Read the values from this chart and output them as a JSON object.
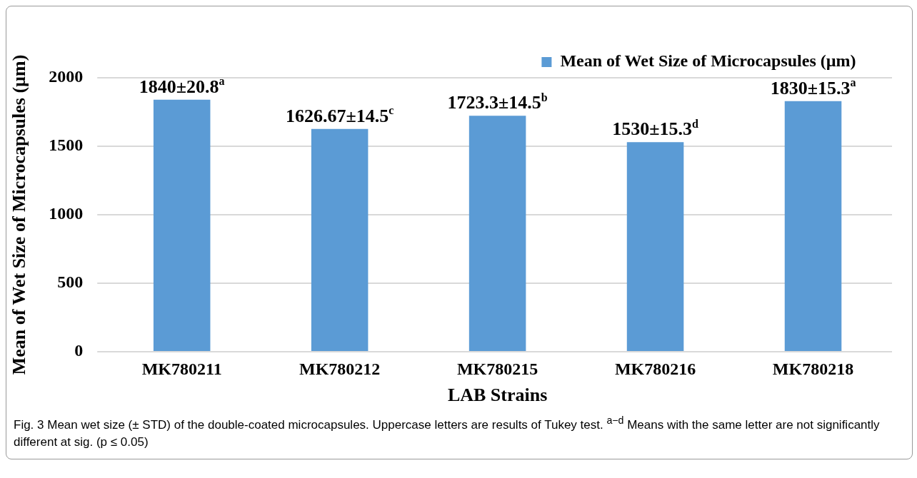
{
  "chart_data": {
    "type": "bar",
    "categories": [
      "MK780211",
      "MK780212",
      "MK780215",
      "MK780216",
      "MK780218"
    ],
    "series": [
      {
        "name": "Mean of Wet Size of Microcapsules (µm)",
        "color": "#5b9bd5",
        "values": [
          1840,
          1626.67,
          1723.3,
          1530,
          1830
        ],
        "value_labels": [
          "1840±20.8$^{a}$",
          "1626.67±14.5$^{c}$",
          "1723.3±14.5$^{b}$",
          "1530±15.3$^{d}$",
          "1830±15.3$^{a}$"
        ]
      }
    ],
    "xlabel": "LAB Strains",
    "ylabel": "Mean of Wet Size of Microcapsules (µm)",
    "ylim": [
      0,
      2000
    ],
    "yticks": [
      0,
      500,
      1000,
      1500,
      2000
    ],
    "grid": "y",
    "legend": "top right",
    "annotations": [
      "Fig. 3 Mean wet size (± STD) of the double-coated microcapsules. Uppercase letters are results of Tukey test. $^{a−d}$ Means with the same letter are not significantly different at sig. (p ≤ 0.05)"
    ]
  }
}
